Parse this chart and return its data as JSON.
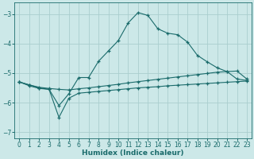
{
  "xlabel": "Humidex (Indice chaleur)",
  "background_color": "#cce8e8",
  "grid_color": "#aacece",
  "line_color": "#1a6b6b",
  "xlim": [
    -0.5,
    23.5
  ],
  "ylim": [
    -7.2,
    -2.6
  ],
  "yticks": [
    -7,
    -6,
    -5,
    -4,
    -3
  ],
  "xticks": [
    0,
    1,
    2,
    3,
    4,
    5,
    6,
    7,
    8,
    9,
    10,
    11,
    12,
    13,
    14,
    15,
    16,
    17,
    18,
    19,
    20,
    21,
    22,
    23
  ],
  "line_max": {
    "x": [
      0,
      1,
      2,
      3,
      4,
      5,
      6,
      7,
      8,
      9,
      10,
      11,
      12,
      13,
      14,
      15,
      16,
      17,
      18,
      19,
      20,
      21,
      22,
      23
    ],
    "y": [
      -5.3,
      -5.4,
      -5.5,
      -5.55,
      -6.1,
      -5.7,
      -5.15,
      -5.15,
      -4.6,
      -4.25,
      -3.9,
      -3.3,
      -2.95,
      -3.05,
      -3.5,
      -3.65,
      -3.7,
      -3.95,
      -4.4,
      -4.62,
      -4.82,
      -4.95,
      -5.2,
      -5.25
    ]
  },
  "line_mean": {
    "x": [
      0,
      1,
      2,
      3,
      4,
      5,
      6,
      7,
      8,
      9,
      10,
      11,
      12,
      13,
      14,
      15,
      16,
      17,
      18,
      19,
      20,
      21,
      22,
      23
    ],
    "y": [
      -5.3,
      -5.4,
      -5.48,
      -5.52,
      -5.55,
      -5.57,
      -5.53,
      -5.5,
      -5.46,
      -5.42,
      -5.38,
      -5.33,
      -5.29,
      -5.25,
      -5.21,
      -5.17,
      -5.13,
      -5.09,
      -5.05,
      -5.01,
      -4.97,
      -4.95,
      -4.93,
      -5.2
    ]
  },
  "line_min": {
    "x": [
      0,
      1,
      2,
      3,
      4,
      5,
      6,
      7,
      8,
      9,
      10,
      11,
      12,
      13,
      14,
      15,
      16,
      17,
      18,
      19,
      20,
      21,
      22,
      23
    ],
    "y": [
      -5.3,
      -5.43,
      -5.52,
      -5.55,
      -6.5,
      -5.85,
      -5.68,
      -5.65,
      -5.62,
      -5.59,
      -5.56,
      -5.53,
      -5.5,
      -5.48,
      -5.46,
      -5.43,
      -5.41,
      -5.39,
      -5.37,
      -5.35,
      -5.33,
      -5.31,
      -5.29,
      -5.27
    ]
  }
}
